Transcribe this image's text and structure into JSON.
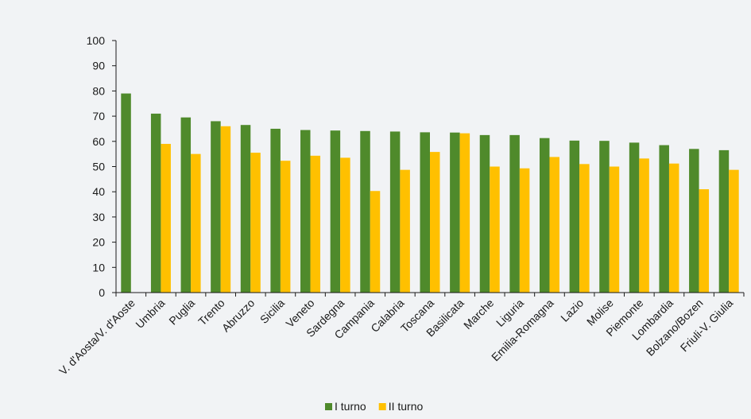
{
  "chart_data": {
    "type": "bar",
    "categories": [
      "V. d'Aosta/V. d'Aoste",
      "Umbria",
      "Puglia",
      "Trento",
      "Abruzzo",
      "Sicilia",
      "Veneto",
      "Sardegna",
      "Campania",
      "Calabria",
      "Toscana",
      "Basilicata",
      "Marche",
      "Liguria",
      "Emilia-Romagna",
      "Lazio",
      "Molise",
      "Piemonte",
      "Lombardia",
      "Bolzano/Bozen",
      "Friuli-V. Giulia"
    ],
    "series": [
      {
        "name": "I turno",
        "color": "#4f8a2b",
        "values": [
          79,
          71,
          69.5,
          68,
          66.5,
          65,
          64.5,
          64.3,
          64.1,
          63.9,
          63.6,
          63.5,
          62.5,
          62.5,
          61.3,
          60.3,
          60.2,
          59.5,
          58.5,
          57,
          56.5
        ]
      },
      {
        "name": "II turno",
        "color": "#ffc000",
        "values": [
          null,
          59,
          55,
          66,
          55.5,
          52.3,
          54.3,
          53.5,
          40.3,
          48.7,
          55.8,
          63.2,
          50,
          49.3,
          53.8,
          51,
          50,
          53.2,
          51.2,
          41,
          48.7
        ]
      }
    ],
    "y_ticks": [
      "0",
      "10",
      "20",
      "30",
      "40",
      "50",
      "60",
      "70",
      "80",
      "90",
      "100"
    ],
    "ylim": [
      0,
      100
    ],
    "title": "",
    "xlabel": "",
    "ylabel": "",
    "grid": false,
    "legend_position": "bottom-center"
  }
}
